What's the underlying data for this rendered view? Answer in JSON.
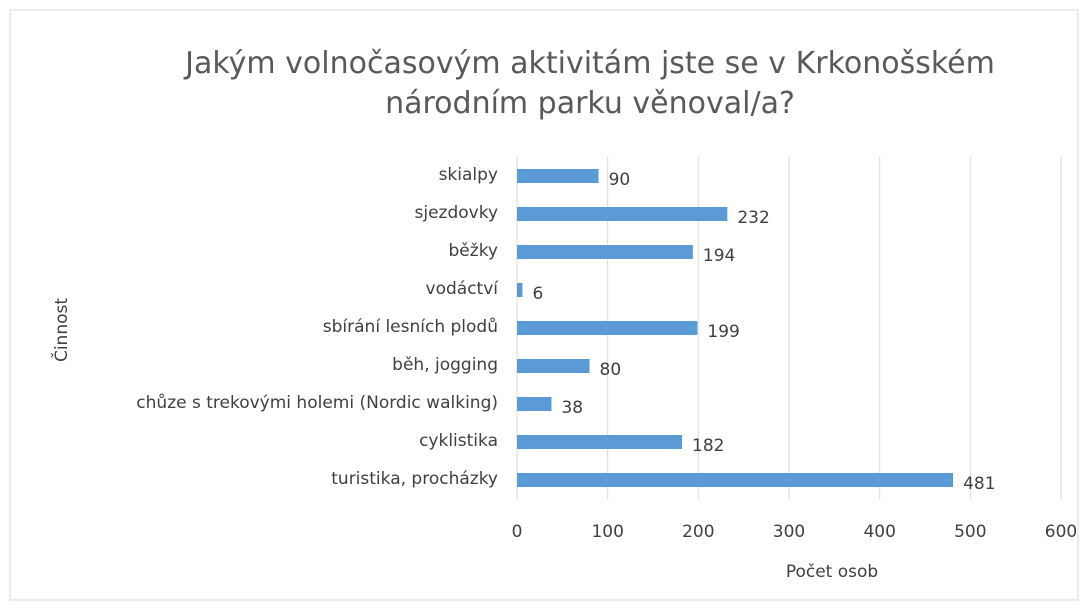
{
  "chart_data": {
    "type": "bar",
    "orientation": "horizontal",
    "title": "Jakým volnočasovým aktivitám jste se v Krkonošském národním parku věnoval/a?",
    "x_label": "Počet osob",
    "y_label": "Činnost",
    "categories": [
      "skialpy",
      "sjezdovky",
      "běžky",
      "vodáctví",
      "sbírání lesních plodů",
      "běh, jogging",
      "chůze s trekovými holemi (Nordic walking)",
      "cyklistika",
      "turistika, procházky"
    ],
    "values": [
      90,
      232,
      194,
      6,
      199,
      80,
      38,
      182,
      481
    ],
    "color": "#5b9bd5",
    "xlim": [
      0,
      600
    ],
    "xticks": [
      0,
      100,
      200,
      300,
      400,
      500,
      600
    ],
    "grid": true
  }
}
